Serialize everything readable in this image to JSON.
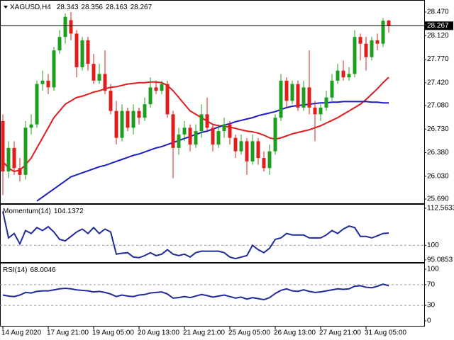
{
  "chart_data": [
    {
      "type": "candlestick",
      "title": "XAGUSD,H4",
      "categories": [
        "14 Aug 2020",
        null,
        null,
        null,
        null,
        null,
        null,
        null,
        "17 Aug 21:00",
        null,
        null,
        null,
        null,
        null,
        null,
        null,
        "19 Aug 05:00",
        null,
        null,
        null,
        null,
        null,
        null,
        null,
        "20 Aug 13:00",
        null,
        null,
        null,
        null,
        null,
        null,
        null,
        "21 Aug 21:00",
        null,
        null,
        null,
        null,
        null,
        null,
        null,
        "25 Aug 05:00",
        null,
        null,
        null,
        null,
        null,
        null,
        null,
        "26 Aug 13:00",
        null,
        null,
        null,
        null,
        null,
        null,
        null,
        "27 Aug 21:00",
        null,
        null,
        null,
        null,
        null,
        null,
        null,
        "31 Aug 05:00",
        null,
        null,
        null,
        null
      ],
      "open": [
        26.85,
        26.1,
        26.45,
        26.15,
        26.05,
        26.75,
        26.8,
        27.4,
        27.45,
        27.35,
        27.9,
        28.1,
        28.35,
        28.15,
        27.65,
        28.05,
        27.7,
        27.45,
        27.55,
        27.3,
        27,
        26.6,
        27,
        26.75,
        27,
        26.9,
        27.1,
        27.35,
        27.3,
        27.4,
        26.95,
        26.45,
        26.65,
        26.75,
        26.5,
        26.7,
        26.95,
        26.75,
        26.5,
        26.7,
        26.8,
        26.6,
        26.4,
        26.55,
        26.25,
        26.55,
        26.3,
        26.15,
        26.4,
        26.9,
        27.45,
        27.15,
        27.4,
        27.05,
        27.35,
        27.05,
        26.95,
        27.05,
        27.2,
        27.45,
        27.6,
        27.5,
        27.55,
        28.1,
        28,
        27.8,
        28.05,
        28,
        28.343
      ],
      "high": [
        26.95,
        26.55,
        26.55,
        26.3,
        26.85,
        26.95,
        27.45,
        27.6,
        27.55,
        27.95,
        28.2,
        28.45,
        28.47,
        28.2,
        28.1,
        28.1,
        27.85,
        27.7,
        27.9,
        27.4,
        27.15,
        27.1,
        27.05,
        27.1,
        27.05,
        27.2,
        27.5,
        27.45,
        27.45,
        27.45,
        27,
        26.75,
        26.85,
        26.8,
        26.8,
        27.1,
        27.2,
        26.8,
        26.8,
        26.9,
        26.85,
        26.65,
        26.65,
        26.6,
        26.65,
        26.6,
        26.4,
        26.5,
        26.95,
        27.55,
        27.5,
        27.45,
        27.45,
        27.45,
        27.9,
        27.15,
        27.1,
        27.3,
        27.55,
        27.7,
        27.75,
        27.65,
        28.2,
        28.15,
        28.1,
        28.1,
        28.15,
        28.38,
        28.356
      ],
      "low": [
        25.75,
        26,
        26.05,
        25.95,
        25.98,
        26.65,
        26.75,
        27.3,
        27.25,
        27.3,
        27.85,
        28,
        28.05,
        27.5,
        27.6,
        27.6,
        27.4,
        27.4,
        27.25,
        26.95,
        26.5,
        26.55,
        26.7,
        26.65,
        26.8,
        26.85,
        27.05,
        27.25,
        27.25,
        26.9,
        26,
        26.35,
        26.55,
        26.4,
        26.45,
        26.6,
        26.7,
        26.4,
        26.45,
        26.6,
        26.5,
        26.3,
        26.35,
        26.05,
        26.2,
        26.2,
        26.1,
        26.05,
        26.35,
        26.85,
        27.05,
        27.1,
        27,
        27,
        26.95,
        26.55,
        26.85,
        27,
        27.15,
        27.4,
        27.45,
        27.45,
        27.5,
        27.75,
        27.6,
        27.75,
        27.9,
        27.95,
        28.163
      ],
      "close": [
        26.1,
        26.45,
        26.15,
        26.05,
        26.75,
        26.8,
        27.4,
        27.45,
        27.35,
        27.9,
        28.1,
        28.4,
        28.15,
        27.65,
        28.05,
        27.7,
        27.45,
        27.55,
        27.3,
        27,
        26.6,
        27,
        26.75,
        27,
        26.9,
        27.1,
        27.35,
        27.3,
        27.4,
        26.95,
        26.45,
        26.65,
        26.75,
        26.5,
        26.7,
        26.95,
        26.75,
        26.5,
        26.7,
        26.8,
        26.6,
        26.4,
        26.55,
        26.25,
        26.55,
        26.3,
        26.15,
        26.4,
        26.9,
        27.45,
        27.15,
        27.4,
        27.05,
        27.35,
        27.05,
        26.95,
        27.05,
        27.2,
        27.45,
        27.6,
        27.5,
        27.55,
        28.1,
        28,
        27.8,
        28.05,
        28,
        28.34,
        28.267
      ],
      "up_color": "#1e9e1e",
      "down_color": "#e01e1e",
      "overlays": [
        {
          "color": "#e01b1b",
          "values": [
            26.25,
            26.15,
            26.1,
            26.12,
            26.2,
            26.3,
            26.45,
            26.6,
            26.75,
            26.9,
            27,
            27.1,
            27.15,
            27.2,
            27.22,
            27.25,
            27.28,
            27.3,
            27.33,
            27.35,
            27.36,
            27.38,
            27.4,
            27.41,
            27.42,
            27.42,
            27.43,
            27.43,
            27.42,
            27.38,
            27.3,
            27.2,
            27.1,
            27,
            26.95,
            26.9,
            26.85,
            26.8,
            26.78,
            26.77,
            26.76,
            26.74,
            26.72,
            26.7,
            26.69,
            26.67,
            26.64,
            26.6,
            26.58,
            26.6,
            26.63,
            26.66,
            26.68,
            26.7,
            26.72,
            26.75,
            26.78,
            26.82,
            26.86,
            26.9,
            26.95,
            27,
            27.05,
            27.1,
            27.17,
            27.25,
            27.33,
            27.42,
            27.5
          ]
        },
        {
          "color": "#1c1cc4",
          "values": [
            null,
            null,
            null,
            null,
            null,
            null,
            25.66,
            25.72,
            25.78,
            25.84,
            25.9,
            25.96,
            26.02,
            26.05,
            26.08,
            26.11,
            26.14,
            26.17,
            26.19,
            26.22,
            26.25,
            26.28,
            26.31,
            26.34,
            26.36,
            26.39,
            26.42,
            26.45,
            26.47,
            26.5,
            26.53,
            26.56,
            26.59,
            26.62,
            26.65,
            26.68,
            26.7,
            26.73,
            26.76,
            26.79,
            26.81,
            26.84,
            26.86,
            26.88,
            26.9,
            26.93,
            26.95,
            26.97,
            26.99,
            27.02,
            27.05,
            27.07,
            27.08,
            27.09,
            27.1,
            27.11,
            27.12,
            27.12,
            27.13,
            27.13,
            27.14,
            27.14,
            27.14,
            27.14,
            27.14,
            27.13,
            27.13,
            27.12,
            27.12
          ]
        }
      ],
      "ylim": [
        25.627,
        28.639
      ],
      "yticks": [
        {
          "value": 28.47,
          "label": "28.470"
        },
        {
          "value": 28.12,
          "label": "28.120"
        },
        {
          "value": 27.77,
          "label": "27.770"
        },
        {
          "value": 27.42,
          "label": "27.420"
        },
        {
          "value": 27.08,
          "label": "27.080"
        },
        {
          "value": 26.73,
          "label": "26.730"
        },
        {
          "value": 26.38,
          "label": "26.380"
        },
        {
          "value": 26.03,
          "label": "26.030"
        },
        {
          "value": 25.69,
          "label": "25.690"
        }
      ]
    },
    {
      "type": "line",
      "title": "Momentum(14)",
      "color": "#1f2a9a",
      "values": [
        111.5,
        102.5,
        104,
        100.5,
        105,
        104,
        106,
        105,
        106.3,
        104.5,
        102,
        101.5,
        103,
        104.5,
        105.5,
        104,
        106,
        104,
        105.5,
        104.5,
        97,
        97.3,
        97.5,
        96,
        95.8,
        96.5,
        97.5,
        96.5,
        97,
        98.5,
        97,
        96.5,
        97,
        96,
        97.5,
        98,
        98,
        98,
        98,
        97.5,
        96,
        95.5,
        96,
        96.5,
        100,
        98.5,
        97.5,
        99,
        102,
        102.5,
        104,
        103.5,
        103.5,
        103.5,
        102.5,
        102.5,
        102.5,
        103.5,
        105,
        104,
        105.5,
        106.5,
        106,
        103,
        103,
        102.5,
        103.2,
        104,
        104.1372
      ],
      "ylim": [
        94.31,
        113.75
      ],
      "yticks": [
        112.5633,
        100,
        95.0853
      ],
      "levels": [
        100
      ]
    },
    {
      "type": "line",
      "title": "RSI(14)",
      "color": "#1f2a9a",
      "values": [
        50,
        48,
        47,
        50,
        55,
        54,
        57,
        58,
        58,
        60,
        62,
        63,
        62,
        60,
        59,
        58,
        56,
        57,
        55,
        52,
        47,
        50,
        48,
        47,
        50,
        51,
        54,
        55,
        56,
        52,
        44,
        45,
        47,
        45,
        48,
        51,
        49,
        46,
        48,
        50,
        47,
        44,
        46,
        42,
        45,
        43,
        41,
        45,
        53,
        59,
        62,
        58,
        57,
        60,
        57,
        55,
        56,
        58,
        60,
        62,
        61,
        62,
        67,
        68,
        65,
        64,
        67,
        71,
        68.0046
      ],
      "ylim": [
        -9.6,
        111
      ],
      "yticks": [
        100,
        70,
        30,
        0
      ],
      "levels": [
        70,
        30
      ]
    }
  ]
}
